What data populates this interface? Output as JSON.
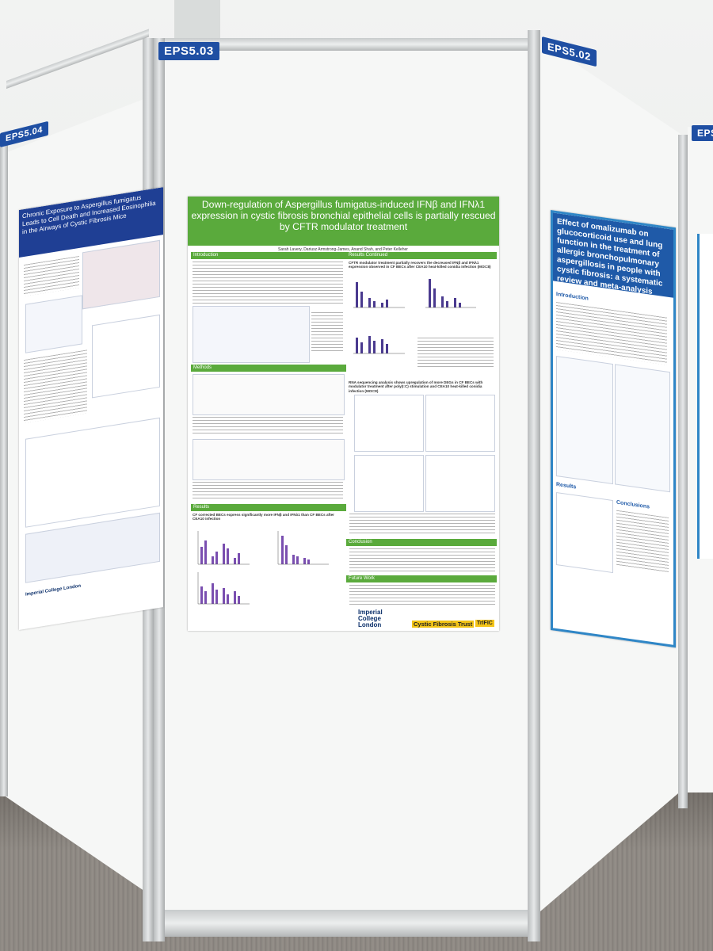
{
  "booth_tags": {
    "left": "EPS5.04",
    "center": "EPS5.03",
    "right": "EPS5.02",
    "far_right": "EPS"
  },
  "center_poster": {
    "title": "Down-regulation of Aspergillus fumigatus-induced IFNβ and IFNλ1 expression in cystic fibrosis bronchial epithelial cells is partially rescued by CFTR modulator treatment",
    "authors": "Sarah Lavery, Dariusz Armstrong-James, Anand Shah, and Peter Kelleher",
    "sections": {
      "intro": "Introduction",
      "methods": "Methods",
      "results": "Results",
      "results_continued": "Results Continued",
      "conclusion": "Conclusion",
      "future_work": "Future Work"
    },
    "results_heading": "CF corrected BECs express significantly more IFNβ and IFNλ1 than CF BECs after CEA10 infection",
    "rc_heading": "CFTR modulator treatment partially recovers the decreased IFNβ and IFNλ1 expression observed in CF BECs after CEA10 heat-killed conidia infection (MOI=8)",
    "rna_heading": "RNA sequencing analysis shows upregulation of more DEGs in CF BECs with modulator treatment after poly(I:C) stimulation and CEA10 heat-killed conidia infection (MOI=8)",
    "logos": {
      "imperial": "Imperial College London",
      "cf_trust": "Cystic Fibrosis Trust",
      "trific": "TrIFIC"
    }
  },
  "left_poster": {
    "title": "Chronic Exposure to Aspergillus fumigatus Leads to Cell Death and Increased Eosinophilia in the Airways of Cystic Fibrosis Mice",
    "logo": "Imperial College London"
  },
  "right_poster": {
    "title": "Effect of omalizumab on glucocorticoid use and lung function in the treatment of allergic bronchopulmonary aspergillosis in people with cystic fibrosis: a systematic review and meta-analysis",
    "sections": [
      "Introduction",
      "Results",
      "Conclusions"
    ]
  },
  "colors": {
    "tag_blue": "#1f4fa3",
    "center_green": "#5aaa3c",
    "left_navy": "#1f3f94",
    "right_blue": "#1f5aa8"
  }
}
